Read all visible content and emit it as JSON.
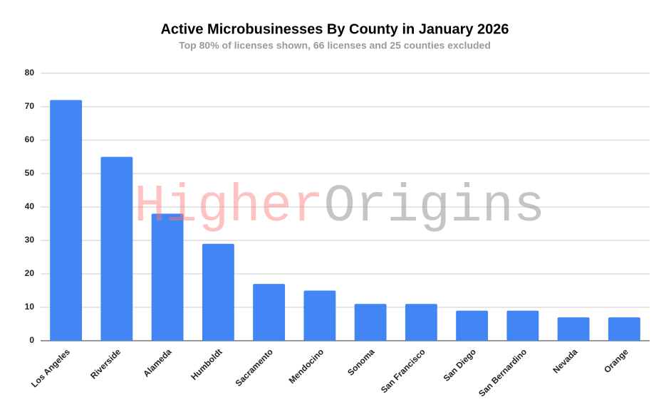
{
  "chart_data": {
    "type": "bar",
    "title": "Active Microbusinesses By County in January 2026",
    "subtitle": "Top 80% of licenses shown, 66 licenses and 25 counties excluded",
    "categories": [
      "Los Angeles",
      "Riverside",
      "Alameda",
      "Humboldt",
      "Sacramento",
      "Mendocino",
      "Sonoma",
      "San Francisco",
      "San Diego",
      "San Bernardino",
      "Nevada",
      "Orange"
    ],
    "values": [
      72,
      55,
      38,
      29,
      17,
      15,
      11,
      11,
      9,
      9,
      7,
      7
    ],
    "color": "#4285f4",
    "ylim": [
      0,
      80
    ],
    "yticks": [
      0,
      10,
      20,
      30,
      40,
      50,
      60,
      70,
      80
    ],
    "grid": true,
    "watermark": [
      "Higher",
      "Origins"
    ]
  }
}
